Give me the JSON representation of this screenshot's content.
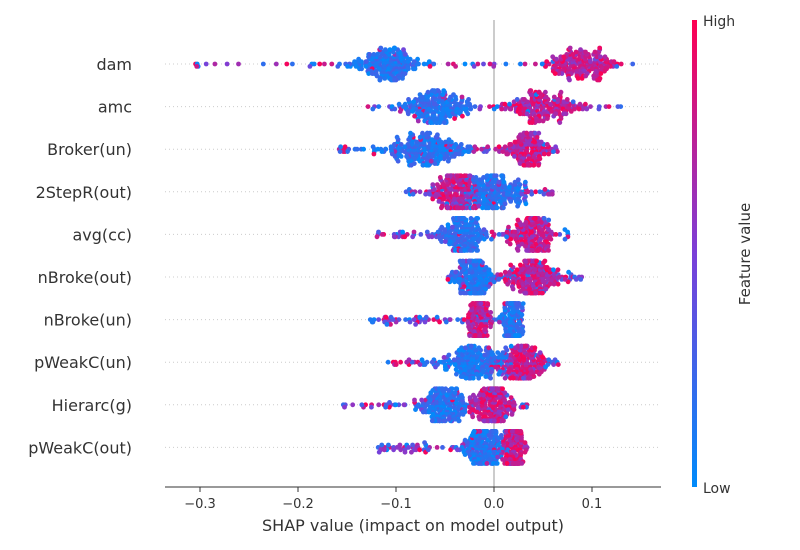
{
  "chart_data": {
    "type": "scatter",
    "subtype": "shap-beeswarm",
    "xlabel": "SHAP value (impact on model output)",
    "xlim": [
      -0.34,
      0.17
    ],
    "xticks": [
      -0.3,
      -0.2,
      -0.1,
      0.0,
      0.1
    ],
    "xtick_labels": [
      "−0.3",
      "−0.2",
      "−0.1",
      "0.0",
      "0.1"
    ],
    "zero_line": true,
    "colorbar": {
      "label": "Feature value",
      "high": "High",
      "low": "Low",
      "low_color": "#008bfb",
      "high_color": "#ff0052"
    },
    "features": [
      {
        "name": "dam",
        "min": -0.31,
        "max": 0.15,
        "dense_low": [
          -0.11,
          0.03
        ],
        "dense_high": [
          0.09,
          0.03
        ]
      },
      {
        "name": "amc",
        "min": -0.13,
        "max": 0.13,
        "dense_low": [
          -0.06,
          0.03
        ],
        "dense_high": [
          0.05,
          0.03
        ]
      },
      {
        "name": "Broker(un)",
        "min": -0.16,
        "max": 0.07,
        "dense_low": [
          -0.07,
          0.04
        ],
        "dense_high": [
          0.035,
          0.02
        ]
      },
      {
        "name": "2StepR(out)",
        "min": -0.09,
        "max": 0.06,
        "dense_low": [
          0.0,
          0.03
        ],
        "dense_high": [
          -0.04,
          0.02
        ]
      },
      {
        "name": "avg(cc)",
        "min": -0.12,
        "max": 0.08,
        "dense_low": [
          -0.03,
          0.02
        ],
        "dense_high": [
          0.04,
          0.02
        ]
      },
      {
        "name": "nBroke(out)",
        "min": -0.05,
        "max": 0.09,
        "dense_low": [
          -0.02,
          0.02
        ],
        "dense_high": [
          0.04,
          0.02
        ]
      },
      {
        "name": "nBroke(un)",
        "min": -0.13,
        "max": 0.03,
        "dense_low": [
          0.02,
          0.01
        ],
        "dense_high": [
          -0.015,
          0.01
        ]
      },
      {
        "name": "pWeakC(un)",
        "min": -0.11,
        "max": 0.07,
        "dense_low": [
          -0.02,
          0.03
        ],
        "dense_high": [
          0.03,
          0.02
        ]
      },
      {
        "name": "Hierarc(g)",
        "min": -0.16,
        "max": 0.04,
        "dense_low": [
          -0.05,
          0.02
        ],
        "dense_high": [
          0.0,
          0.02
        ]
      },
      {
        "name": "pWeakC(out)",
        "min": -0.12,
        "max": 0.035,
        "dense_low": [
          -0.01,
          0.02
        ],
        "dense_high": [
          0.02,
          0.01
        ]
      }
    ]
  }
}
